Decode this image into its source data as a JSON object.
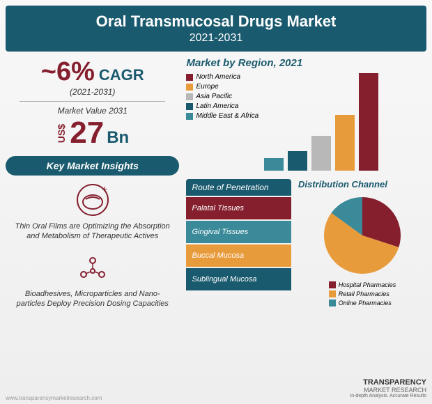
{
  "header": {
    "title": "Oral Transmucosal Drugs Market",
    "years": "2021-2031"
  },
  "cagr": {
    "value": "~6%",
    "label": "CAGR",
    "period": "(2021-2031)"
  },
  "marketValue": {
    "label": "Market Value 2031",
    "currency": "US$",
    "value": "27",
    "unit": "Bn"
  },
  "insightsTitle": "Key Market Insights",
  "insights": [
    {
      "text": "Thin Oral Films are Optimizing the Absorption and Metabolism of Therapeutic Actives"
    },
    {
      "text": "Bioadhesives, Microparticles and Nano-particles Deploy Precision Dosing Capacities"
    }
  ],
  "regionChart": {
    "title": "Market by Region, 2021",
    "regions": [
      {
        "name": "North America",
        "color": "#851f2e",
        "value": 140
      },
      {
        "name": "Europe",
        "color": "#e89b3b",
        "value": 80
      },
      {
        "name": "Asia Pacific",
        "color": "#b8b8b8",
        "value": 50
      },
      {
        "name": "Latin America",
        "color": "#1a5a6e",
        "value": 28
      },
      {
        "name": "Middle East & Africa",
        "color": "#3a8a9a",
        "value": 18
      }
    ]
  },
  "route": {
    "title": "Route of Penetration",
    "items": [
      {
        "label": "Palatal Tissues",
        "color": "#851f2e"
      },
      {
        "label": "Gingival Tissues",
        "color": "#3a8a9a"
      },
      {
        "label": "Buccal Mucosa",
        "color": "#e89b3b"
      },
      {
        "label": "Sublingual Mucosa",
        "color": "#1a5a6e"
      }
    ]
  },
  "dist": {
    "title": "Distribution Channel",
    "slices": [
      {
        "label": "Hospital Pharmacies",
        "color": "#851f2e",
        "pct": 30
      },
      {
        "label": "Retail Pharmacies",
        "color": "#e89b3b",
        "pct": 55
      },
      {
        "label": "Online Pharmacies",
        "color": "#3a8a9a",
        "pct": 15
      }
    ]
  },
  "watermark": "www.transparencymarketresearch.com",
  "logo": {
    "main": "TRANSPARENCY",
    "sub": "MARKET RESEARCH",
    "tag": "In-depth Analysis. Accurate Results"
  }
}
